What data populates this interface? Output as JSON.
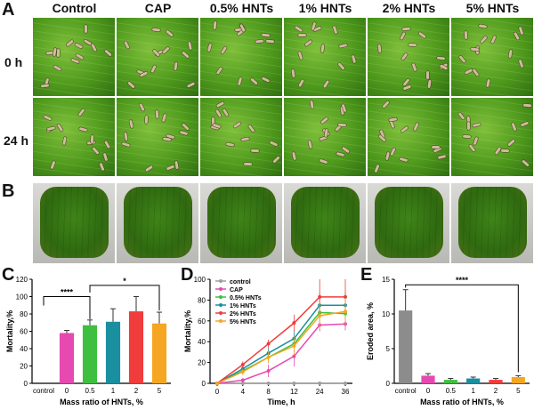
{
  "panels": {
    "a": "A",
    "b": "B",
    "c": "C",
    "d": "D",
    "e": "E"
  },
  "columns": [
    "Control",
    "CAP",
    "0.5% HNTs",
    "1% HNTs",
    "2% HNTs",
    "5% HNTs"
  ],
  "rows": [
    "0 h",
    "24 h"
  ],
  "colors": {
    "control": "#9e9e9e",
    "cap": "#e64ab0",
    "h05": "#3fbf3f",
    "h1": "#1a8fa0",
    "h2": "#f03c3c",
    "h5": "#f5a623",
    "e_bar": "#8c8c8c"
  },
  "chart_data": [
    {
      "id": "C",
      "type": "bar",
      "categories": [
        "control",
        "0",
        "0.5",
        "1",
        "2",
        "5"
      ],
      "values": [
        0,
        58,
        67,
        71,
        83,
        69
      ],
      "errors": [
        0,
        3,
        6,
        15,
        17,
        13
      ],
      "xlabel": "Mass ratio of HNTs, %",
      "ylabel": "Mortality,%",
      "ylim": [
        0,
        120
      ],
      "yticks": [
        "0",
        "20",
        "40",
        "60",
        "80",
        "100",
        "120"
      ],
      "annotations": [
        "****",
        "*"
      ]
    },
    {
      "id": "D",
      "type": "line",
      "x": [
        0,
        4,
        8,
        12,
        24,
        36
      ],
      "xticks": [
        "0",
        "4",
        "8",
        "12",
        "24",
        "36"
      ],
      "xlabel": "Time, h",
      "ylabel": "Mortality,%",
      "ylim": [
        0,
        100
      ],
      "yticks": [
        "0",
        "20",
        "40",
        "60",
        "80",
        "100"
      ],
      "legend_position": "top-left",
      "series": [
        {
          "name": "control",
          "values": [
            0,
            0,
            0,
            0,
            0,
            0
          ],
          "errors": [
            0,
            0,
            0,
            0,
            0,
            0
          ]
        },
        {
          "name": "CAP",
          "values": [
            0,
            3,
            12,
            26,
            56,
            57
          ],
          "errors": [
            0,
            2,
            6,
            10,
            6,
            6
          ]
        },
        {
          "name": "0.5% HNTs",
          "values": [
            0,
            12,
            25,
            38,
            68,
            67
          ],
          "errors": [
            0,
            3,
            5,
            8,
            6,
            6
          ]
        },
        {
          "name": "1% HNTs",
          "values": [
            0,
            14,
            29,
            43,
            75,
            75
          ],
          "errors": [
            0,
            3,
            5,
            8,
            12,
            12
          ]
        },
        {
          "name": "2% HNTs",
          "values": [
            0,
            18,
            38,
            58,
            83,
            83
          ],
          "errors": [
            0,
            3,
            4,
            8,
            17,
            17
          ]
        },
        {
          "name": "5% HNTs",
          "values": [
            0,
            11,
            25,
            36,
            65,
            69
          ],
          "errors": [
            0,
            3,
            6,
            9,
            13,
            13
          ]
        }
      ]
    },
    {
      "id": "E",
      "type": "bar",
      "categories": [
        "control",
        "0",
        "0.5",
        "1",
        "2",
        "5"
      ],
      "values": [
        10.5,
        1.1,
        0.5,
        0.7,
        0.5,
        0.9
      ],
      "errors": [
        3.0,
        0.3,
        0.2,
        0.2,
        0.2,
        0.2
      ],
      "xlabel": "Mass ratio of HNTs, %",
      "ylabel": "Eroded area, %",
      "ylim": [
        0,
        15
      ],
      "yticks": [
        "0",
        "5",
        "10",
        "15"
      ],
      "annotations": [
        "****"
      ]
    }
  ]
}
